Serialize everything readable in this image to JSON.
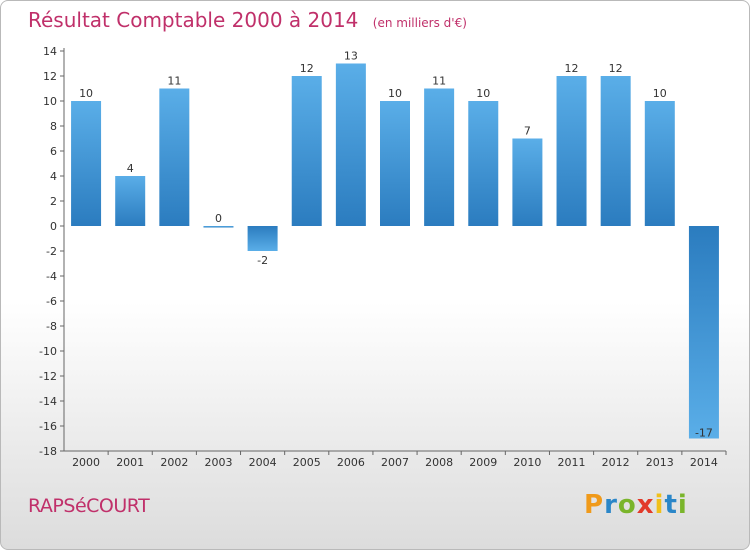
{
  "chart_data": {
    "type": "bar",
    "title": "Résultat Comptable 2000 à 2014",
    "subtitle": "(en milliers d'€)",
    "categories": [
      "2000",
      "2001",
      "2002",
      "2003",
      "2004",
      "2005",
      "2006",
      "2007",
      "2008",
      "2009",
      "2010",
      "2011",
      "2012",
      "2013",
      "2014"
    ],
    "values": [
      10,
      4,
      11,
      0,
      -2,
      12,
      13,
      10,
      11,
      10,
      7,
      12,
      12,
      10,
      -17
    ],
    "data_labels": [
      "10",
      "4",
      "11",
      "0",
      "-2",
      "12",
      "13",
      "10",
      "11",
      "10",
      "7",
      "12",
      "12",
      "10",
      "-17"
    ],
    "ylim": [
      -18,
      14
    ],
    "yticks": [
      14,
      12,
      10,
      8,
      6,
      4,
      2,
      0,
      -2,
      -4,
      -6,
      -8,
      -10,
      -12,
      -14,
      -16,
      -18
    ],
    "ytick_labels": [
      "14",
      "12",
      "10",
      "8",
      "6",
      "4",
      "2",
      "0",
      "-2",
      "-4",
      "-6",
      "-8",
      "-10",
      "-12",
      "-14",
      "-16",
      "-18"
    ],
    "xlabel": "",
    "ylabel": "",
    "grid": false,
    "colors": {
      "bar_light": "#5aaee8",
      "bar_dark": "#2b7cbf",
      "title": "#c0306a",
      "axis": "#666666"
    }
  },
  "footer": {
    "commune": "RAPSéCOURT",
    "logo_letters": [
      "P",
      "r",
      "o",
      "x",
      "i",
      "t",
      "i"
    ],
    "logo_colors": [
      "#f09a1a",
      "#2a86c8",
      "#7ab52b",
      "#e23a2a",
      "#f0c01a",
      "#2a86c8",
      "#7ab52b"
    ]
  }
}
